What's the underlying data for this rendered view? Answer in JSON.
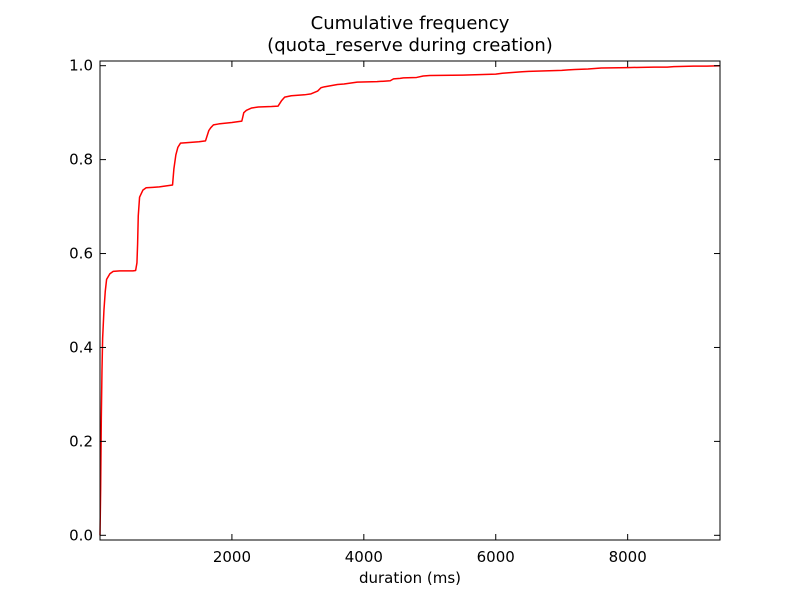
{
  "chart_data": {
    "type": "line",
    "title": "Cumulative frequency",
    "subtitle": "(quota_reserve during creation)",
    "xlabel": "duration (ms)",
    "ylabel": "",
    "xlim": [
      0,
      9400
    ],
    "ylim": [
      -0.01,
      1.01
    ],
    "xticks": [
      2000,
      4000,
      6000,
      8000
    ],
    "xtick_labels": [
      "2000",
      "4000",
      "6000",
      "8000"
    ],
    "yticks": [
      0.0,
      0.2,
      0.4,
      0.6,
      0.8,
      1.0
    ],
    "ytick_labels": [
      "0.0",
      "0.2",
      "0.4",
      "0.6",
      "0.8",
      "1.0"
    ],
    "grid": false,
    "legend": "none",
    "series": [
      {
        "color": "#ff0000",
        "x": [
          0,
          10,
          20,
          30,
          40,
          60,
          80,
          100,
          150,
          200,
          300,
          400,
          500,
          540,
          560,
          570,
          580,
          600,
          650,
          700,
          800,
          900,
          1100,
          1120,
          1150,
          1180,
          1220,
          1300,
          1500,
          1600,
          1650,
          1680,
          1720,
          1800,
          2000,
          2150,
          2180,
          2220,
          2300,
          2400,
          2600,
          2700,
          2750,
          2800,
          2900,
          3100,
          3200,
          3300,
          3350,
          3400,
          3600,
          3700,
          3900,
          4200,
          4300,
          4400,
          4450,
          4550,
          4600,
          4800,
          4900,
          5000,
          5500,
          6000,
          6100,
          6200,
          6400,
          6500,
          7000,
          7100,
          7200,
          7400,
          7500,
          7600,
          8000,
          8400,
          8600,
          8700,
          9000,
          9200,
          9400
        ],
        "y": [
          0.0,
          0.1,
          0.25,
          0.35,
          0.42,
          0.48,
          0.52,
          0.545,
          0.557,
          0.562,
          0.563,
          0.563,
          0.563,
          0.564,
          0.58,
          0.62,
          0.68,
          0.72,
          0.735,
          0.74,
          0.741,
          0.742,
          0.746,
          0.78,
          0.81,
          0.826,
          0.835,
          0.836,
          0.838,
          0.84,
          0.862,
          0.868,
          0.874,
          0.876,
          0.879,
          0.882,
          0.9,
          0.905,
          0.91,
          0.912,
          0.913,
          0.914,
          0.925,
          0.933,
          0.936,
          0.938,
          0.94,
          0.946,
          0.953,
          0.955,
          0.96,
          0.961,
          0.965,
          0.966,
          0.967,
          0.968,
          0.972,
          0.973,
          0.974,
          0.975,
          0.978,
          0.979,
          0.98,
          0.982,
          0.984,
          0.985,
          0.987,
          0.988,
          0.99,
          0.991,
          0.992,
          0.993,
          0.994,
          0.995,
          0.996,
          0.997,
          0.997,
          0.998,
          0.999,
          0.999,
          1.0
        ]
      }
    ]
  }
}
